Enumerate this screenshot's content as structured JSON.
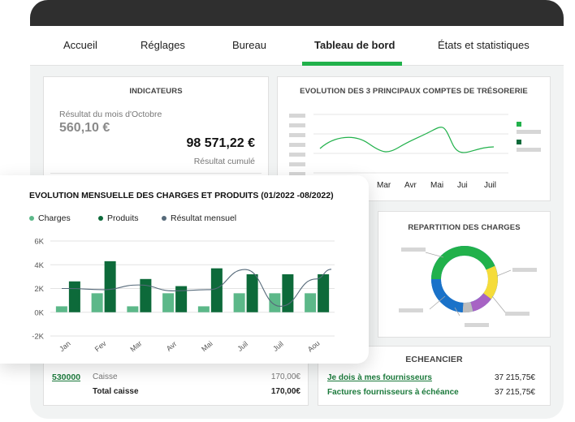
{
  "nav": {
    "tabs": [
      "Accueil",
      "Réglages",
      "Bureau",
      "Tableau de bord",
      "États et statistiques"
    ],
    "active_index": 3
  },
  "colors": {
    "accent_green": "#21b14b",
    "dark_green": "#0d6a3a",
    "light_green": "#5cb889",
    "line": "#566a7a"
  },
  "indicateurs": {
    "title": "INDICATEURS",
    "month_label": "Résultat du mois d'Octobre",
    "month_value": "560,10 €",
    "cumul_value": "98 571,22 €",
    "cumul_label": "Résultat cumulé"
  },
  "tresorerie": {
    "title": "EVOLUTION DES 3 PRINCIPAUX COMPTES DE TRÉSORERIE",
    "months": [
      "Mar",
      "Avr",
      "Mai",
      "Jui",
      "Juil"
    ]
  },
  "repartition": {
    "title": "REPARTITION DES CHARGES"
  },
  "echeancier": {
    "title": "ECHEANCIER",
    "rows": [
      {
        "label": "Je dois à mes fournisseurs",
        "value": "37 215,75€"
      },
      {
        "label": "Factures fournisseurs à échéance",
        "value": "37 215,75€"
      }
    ]
  },
  "caisse": {
    "account": "530000",
    "label": "Caisse",
    "value": "170,00€",
    "total_label": "Total caisse",
    "total_value": "170,00€"
  },
  "chart_data": {
    "type": "bar",
    "title": "EVOLUTION MENSUELLE DES CHARGES ET PRODUITS (01/2022 -08/2022)",
    "categories": [
      "Jan",
      "Fev",
      "Mar",
      "Avr",
      "Mai",
      "Juil",
      "Juil",
      "Aou"
    ],
    "y_ticks": [
      "6K",
      "4K",
      "2K",
      "0K",
      "-2K"
    ],
    "ylim": [
      -2000,
      6000
    ],
    "grid": true,
    "legend_position": "top-left",
    "series": [
      {
        "name": "Charges",
        "type": "bar",
        "color": "#5cb889",
        "values": [
          500,
          1600,
          500,
          1600,
          500,
          1600,
          1600,
          1600
        ]
      },
      {
        "name": "Produits",
        "type": "bar",
        "color": "#0d6a3a",
        "values": [
          2600,
          4300,
          2800,
          2200,
          3700,
          3200,
          3200,
          3200
        ]
      },
      {
        "name": "Résultat mensuel",
        "type": "line",
        "color": "#566a7a",
        "values": [
          2000,
          1900,
          2300,
          1800,
          1900,
          3600,
          500,
          2800
        ]
      }
    ]
  }
}
